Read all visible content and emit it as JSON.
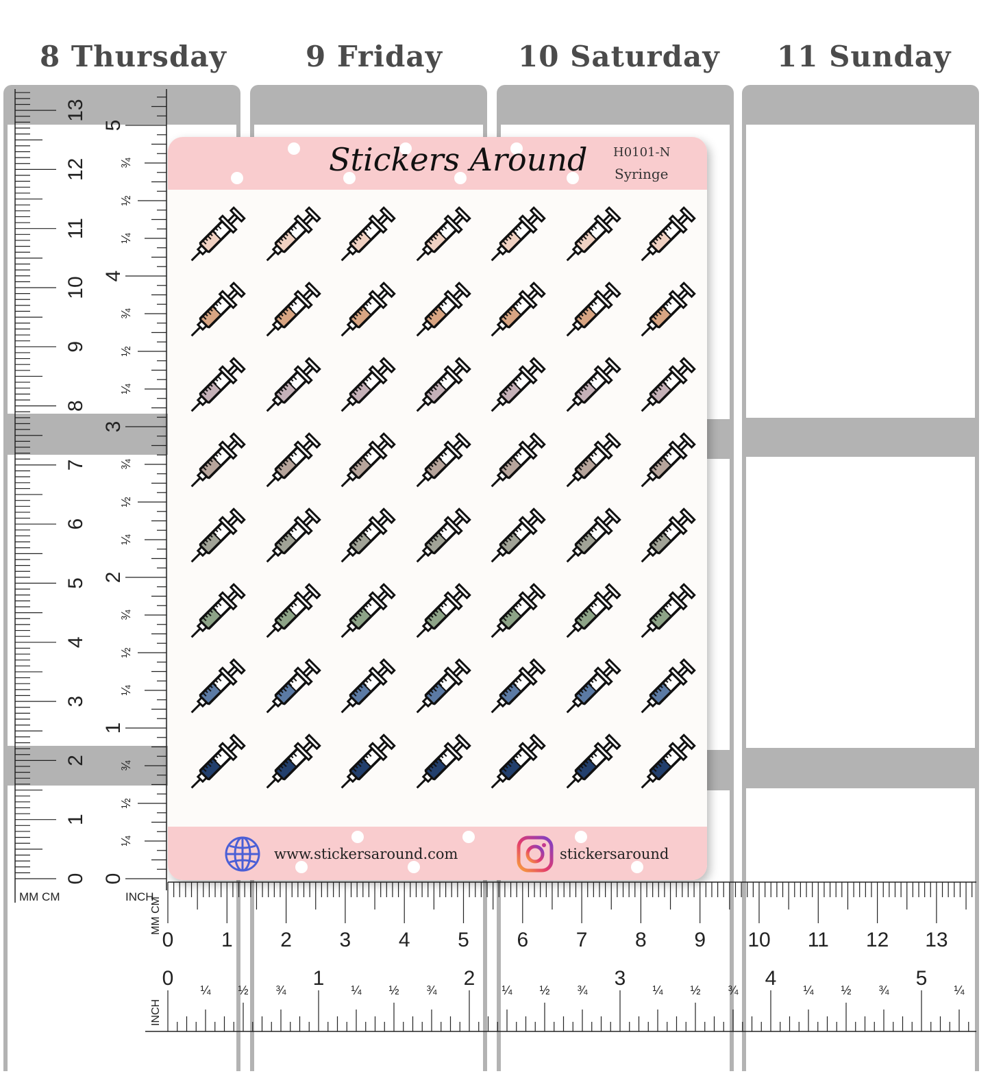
{
  "days": [
    "8 Thursday",
    "9 Friday",
    "10 Saturday",
    "11 Sunday"
  ],
  "sheet": {
    "brand": "Stickers Around",
    "code": "H0101-N",
    "name": "Syringe",
    "website": "www.stickersaround.com",
    "instagram": "stickersaround",
    "icons": {
      "globe": "globe-icon",
      "instagram": "instagram-icon",
      "sticker": "syringe-icon"
    }
  },
  "sticker_row_colors": [
    "#f0d1c2",
    "#d8a583",
    "#c5b1b8",
    "#b7a59c",
    "#a1a397",
    "#8ea488",
    "#5b7aa4",
    "#223f6d"
  ],
  "stickers_per_row": 7,
  "ruler_vertical": {
    "unit_labels": "MM CM",
    "cm_ticks": [
      "0",
      "1",
      "2",
      "3",
      "4",
      "5",
      "6",
      "7",
      "8",
      "9",
      "10",
      "11",
      "12",
      "13"
    ],
    "inch_label": "INCH",
    "inch_ticks": [
      "0",
      "¼",
      "½",
      "¾",
      "1",
      "¼",
      "½",
      "¾",
      "2",
      "¼",
      "½",
      "¾",
      "3",
      "¼",
      "½",
      "¾",
      "4",
      "¼",
      "½",
      "¾",
      "5"
    ]
  },
  "ruler_horizontal": {
    "mm_cm_label": "MM CM",
    "cm_ticks": [
      "0",
      "1",
      "2",
      "3",
      "4",
      "5",
      "6",
      "7",
      "8",
      "9",
      "10",
      "11",
      "12",
      "13"
    ],
    "inch_label": "INCH",
    "inch_ticks": [
      "0",
      "¼",
      "½",
      "¾",
      "1",
      "¼",
      "½",
      "¾",
      "2",
      "¼",
      "½",
      "¾",
      "3",
      "¼",
      "½",
      "¾",
      "4",
      "¼",
      "½",
      "¾",
      "5",
      "¼"
    ]
  }
}
